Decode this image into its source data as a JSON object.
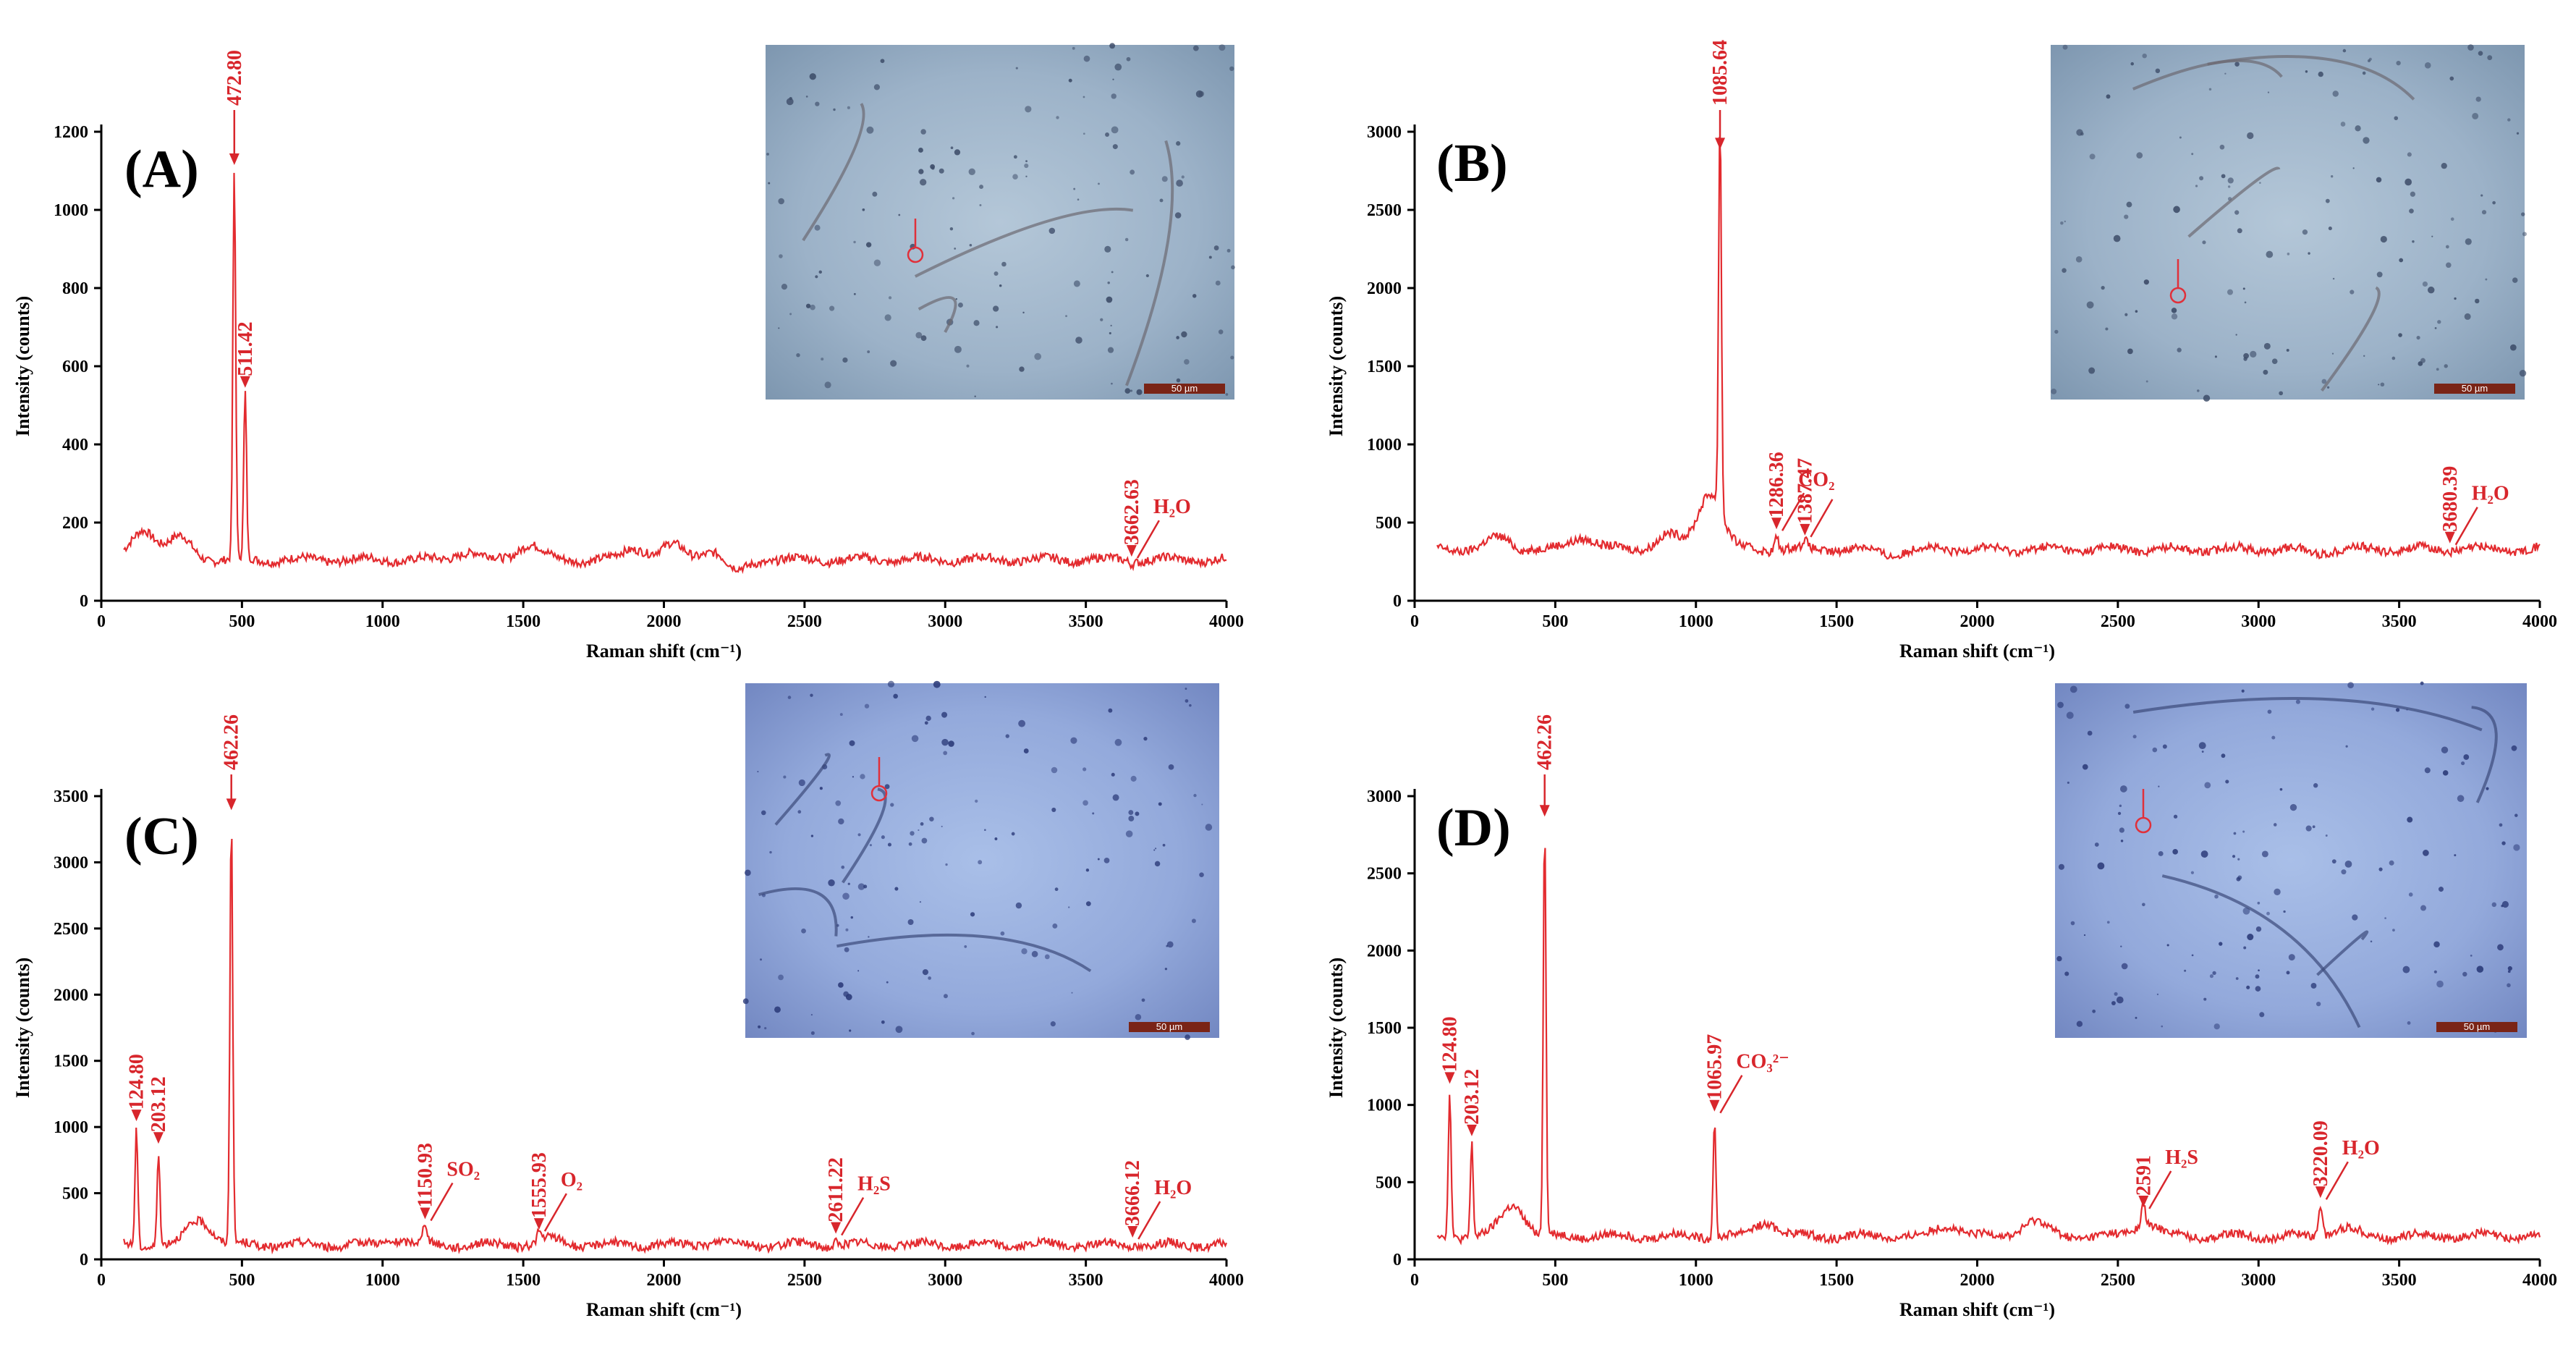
{
  "colors": {
    "spectrum": "#e32b2f",
    "annotation": "#d8262c",
    "axis": "#000000",
    "scale_bar": "#7a2416"
  },
  "chart_data": [
    {
      "type": "line",
      "panel": "(A)",
      "xlabel": "Raman shift (cm⁻¹)",
      "ylabel": "Intensity  (counts)",
      "xlim": [
        0,
        4000
      ],
      "ylim": [
        0,
        1200
      ],
      "xticks": [
        0,
        500,
        1000,
        1500,
        2000,
        2500,
        3000,
        3500,
        4000
      ],
      "yticks": [
        0,
        200,
        400,
        600,
        800,
        1000,
        1200
      ],
      "baseline": 105,
      "wiggles": [
        [
          150,
          185
        ],
        [
          280,
          160
        ],
        [
          1300,
          125
        ],
        [
          1520,
          145
        ],
        [
          1900,
          135
        ],
        [
          2030,
          140
        ],
        [
          2180,
          135
        ],
        [
          2250,
          70
        ]
      ],
      "peaks": [
        {
          "x": 472.8,
          "y": 1100,
          "label": "472.80"
        },
        {
          "x": 511.42,
          "y": 530,
          "label": "511.42"
        },
        {
          "x": 3662.63,
          "y": 98,
          "label": "3662.63",
          "species": "H₂O"
        }
      ],
      "species": [
        "H₂O"
      ],
      "inset": {
        "scale_label": "50 µm"
      }
    },
    {
      "type": "line",
      "panel": "(B)",
      "xlabel": "Raman shift (cm⁻¹)",
      "ylabel": "Intensity  (counts)",
      "xlim": [
        0,
        4000
      ],
      "ylim": [
        0,
        3000
      ],
      "xticks": [
        0,
        500,
        1000,
        1500,
        2000,
        2500,
        3000,
        3500,
        4000
      ],
      "yticks": [
        0,
        500,
        1000,
        1500,
        2000,
        2500,
        3000
      ],
      "baseline": 330,
      "wiggles": [
        [
          300,
          400
        ],
        [
          600,
          410
        ],
        [
          900,
          420
        ],
        [
          1050,
          700
        ],
        [
          1700,
          300
        ],
        [
          2100,
          330
        ],
        [
          3200,
          310
        ]
      ],
      "peaks": [
        {
          "x": 1085.64,
          "y": 2850,
          "label": "1085.64"
        },
        {
          "x": 1286.36,
          "y": 420,
          "label": "1286.36",
          "species": "CO₂"
        },
        {
          "x": 1387.47,
          "y": 380,
          "label": "1387.47",
          "species": "CO₂"
        },
        {
          "x": 3680.39,
          "y": 330,
          "label": "3680.39",
          "species": "H₂O"
        }
      ],
      "species": [
        "CO₂",
        "H₂O"
      ],
      "inset": {
        "scale_label": "50 µm"
      }
    },
    {
      "type": "line",
      "panel": "(C)",
      "xlabel": "Raman shift (cm⁻¹)",
      "ylabel": "Intensity  (counts)",
      "xlim": [
        0,
        4000
      ],
      "ylim": [
        0,
        3500
      ],
      "xticks": [
        0,
        500,
        1000,
        1500,
        2000,
        2500,
        3000,
        3500,
        4000
      ],
      "yticks": [
        0,
        500,
        1000,
        1500,
        2000,
        2500,
        3000,
        3500
      ],
      "baseline": 110,
      "wiggles": [
        [
          350,
          300
        ],
        [
          1050,
          150
        ],
        [
          1600,
          150
        ],
        [
          2200,
          140
        ],
        [
          2750,
          110
        ]
      ],
      "peaks": [
        {
          "x": 124.8,
          "y": 1000,
          "label": "124.80"
        },
        {
          "x": 203.12,
          "y": 830,
          "label": "203.12"
        },
        {
          "x": 462.26,
          "y": 3350,
          "label": "462.26"
        },
        {
          "x": 1150.93,
          "y": 260,
          "label": "1150.93",
          "species": "SO₂"
        },
        {
          "x": 1555.93,
          "y": 180,
          "label": "1555.93",
          "species": "O₂"
        },
        {
          "x": 2611.22,
          "y": 150,
          "label": "2611.22",
          "species": "H₂S"
        },
        {
          "x": 3666.12,
          "y": 120,
          "label": "3666.12",
          "species": "H₂O"
        }
      ],
      "species": [
        "SO₂",
        "O₂",
        "H₂S",
        "H₂O"
      ],
      "inset": {
        "scale_label": "50 µm"
      }
    },
    {
      "type": "line",
      "panel": "(D)",
      "xlabel": "Raman shift (cm⁻¹)",
      "ylabel": "Intensity  (counts)",
      "xlim": [
        0,
        4000
      ],
      "ylim": [
        0,
        3000
      ],
      "xticks": [
        0,
        500,
        1000,
        1500,
        2000,
        2500,
        3000,
        3500,
        4000
      ],
      "yticks": [
        0,
        500,
        1000,
        1500,
        2000,
        2500,
        3000
      ],
      "baseline": 150,
      "wiggles": [
        [
          350,
          350
        ],
        [
          1250,
          240
        ],
        [
          1900,
          220
        ],
        [
          2200,
          250
        ],
        [
          2600,
          230
        ],
        [
          3300,
          200
        ]
      ],
      "peaks": [
        {
          "x": 124.8,
          "y": 1100,
          "label": "124.80"
        },
        {
          "x": 203.12,
          "y": 760,
          "label": "203.12"
        },
        {
          "x": 462.26,
          "y": 2830,
          "label": "462.26"
        },
        {
          "x": 1065.97,
          "y": 920,
          "label": "1065.97",
          "species": "CO₃²⁻"
        },
        {
          "x": 2591,
          "y": 300,
          "label": "2591",
          "species": "H₂S"
        },
        {
          "x": 3220.09,
          "y": 360,
          "label": "3220.09",
          "species": "H₂O"
        }
      ],
      "species": [
        "CO₃²⁻",
        "H₂S",
        "H₂O"
      ],
      "inset": {
        "scale_label": "50 µm"
      }
    }
  ]
}
